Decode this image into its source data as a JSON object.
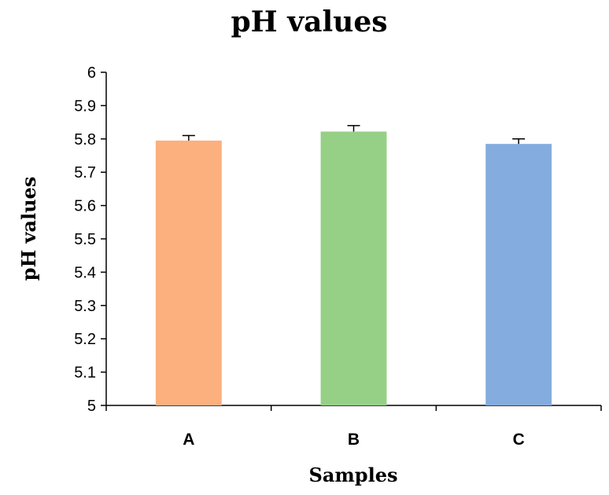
{
  "chart_data": {
    "type": "bar",
    "title": "pH values",
    "xlabel": "Samples",
    "ylabel": "pH values",
    "categories": [
      "A",
      "B",
      "C"
    ],
    "values": [
      5.795,
      5.822,
      5.785
    ],
    "errors": [
      0.015,
      0.018,
      0.015
    ],
    "colors": [
      "#FBB07D",
      "#96D086",
      "#84ACDE"
    ],
    "ylim": [
      5,
      6
    ],
    "yticks": [
      "5",
      "5.1",
      "5.2",
      "5.3",
      "5.4",
      "5.5",
      "5.6",
      "5.7",
      "5.8",
      "5.9",
      "6"
    ],
    "grid": false,
    "legend": "none"
  }
}
